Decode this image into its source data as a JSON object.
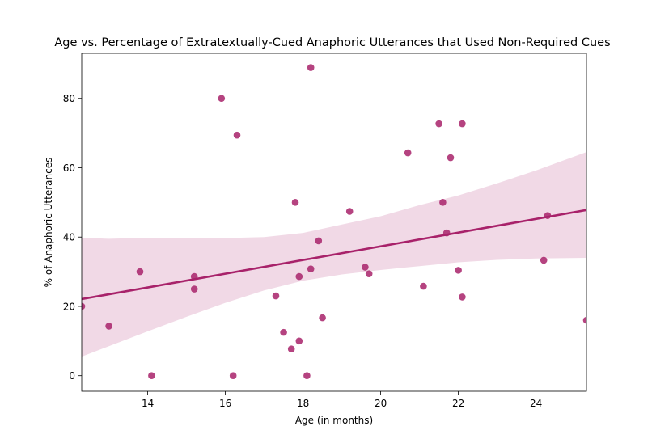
{
  "chart_data": {
    "type": "scatter",
    "title": "Age vs. Percentage of Extratextually-Cued Anaphoric Utterances that Used Non-Required Cues",
    "xlabel": "Age (in months)",
    "ylabel": "% of Anaphoric Utterances",
    "xlim": [
      12.3,
      25.3
    ],
    "ylim": [
      -4.5,
      93
    ],
    "xticks": [
      14,
      16,
      18,
      20,
      22,
      24
    ],
    "yticks": [
      0,
      20,
      40,
      60,
      80
    ],
    "grid": false,
    "colors": {
      "points": "#a8226a",
      "line": "#a8226a",
      "band": "#f1d9e6"
    },
    "regression": {
      "x": [
        12.3,
        25.3
      ],
      "y": [
        22.1,
        47.8
      ]
    },
    "confidence_band": {
      "x": [
        12.3,
        13,
        14,
        15,
        16,
        17,
        18,
        19,
        20,
        21,
        22,
        23,
        24,
        25.3
      ],
      "lower": [
        5.5,
        8.5,
        12.8,
        17.0,
        21.0,
        24.6,
        27.4,
        29.2,
        30.5,
        31.6,
        32.7,
        33.4,
        33.8,
        34.0
      ],
      "upper": [
        39.8,
        39.5,
        39.8,
        39.6,
        39.7,
        40.0,
        41.2,
        43.6,
        46.0,
        49.2,
        52.0,
        55.5,
        59.2,
        64.5
      ]
    },
    "points": [
      {
        "x": 12.3,
        "y": 20.0
      },
      {
        "x": 13.0,
        "y": 14.3
      },
      {
        "x": 13.8,
        "y": 30.0
      },
      {
        "x": 14.1,
        "y": 0.0
      },
      {
        "x": 15.2,
        "y": 28.6
      },
      {
        "x": 15.2,
        "y": 25.0
      },
      {
        "x": 15.9,
        "y": 80.0
      },
      {
        "x": 16.2,
        "y": 0.0
      },
      {
        "x": 16.3,
        "y": 69.4
      },
      {
        "x": 17.3,
        "y": 23.0
      },
      {
        "x": 17.5,
        "y": 12.5
      },
      {
        "x": 17.7,
        "y": 7.7
      },
      {
        "x": 17.8,
        "y": 50.0
      },
      {
        "x": 17.9,
        "y": 28.6
      },
      {
        "x": 17.9,
        "y": 10.0
      },
      {
        "x": 18.1,
        "y": 0.0
      },
      {
        "x": 18.2,
        "y": 88.9
      },
      {
        "x": 18.2,
        "y": 30.8
      },
      {
        "x": 18.4,
        "y": 38.9
      },
      {
        "x": 18.5,
        "y": 16.7
      },
      {
        "x": 19.2,
        "y": 47.4
      },
      {
        "x": 19.6,
        "y": 31.3
      },
      {
        "x": 19.7,
        "y": 29.4
      },
      {
        "x": 20.7,
        "y": 64.3
      },
      {
        "x": 21.1,
        "y": 25.8
      },
      {
        "x": 21.5,
        "y": 72.7
      },
      {
        "x": 21.6,
        "y": 50.0
      },
      {
        "x": 21.7,
        "y": 41.2
      },
      {
        "x": 21.8,
        "y": 62.9
      },
      {
        "x": 22.0,
        "y": 30.4
      },
      {
        "x": 22.1,
        "y": 72.7
      },
      {
        "x": 22.1,
        "y": 22.7
      },
      {
        "x": 24.2,
        "y": 33.3
      },
      {
        "x": 24.3,
        "y": 46.2
      },
      {
        "x": 25.3,
        "y": 16.0
      }
    ]
  }
}
